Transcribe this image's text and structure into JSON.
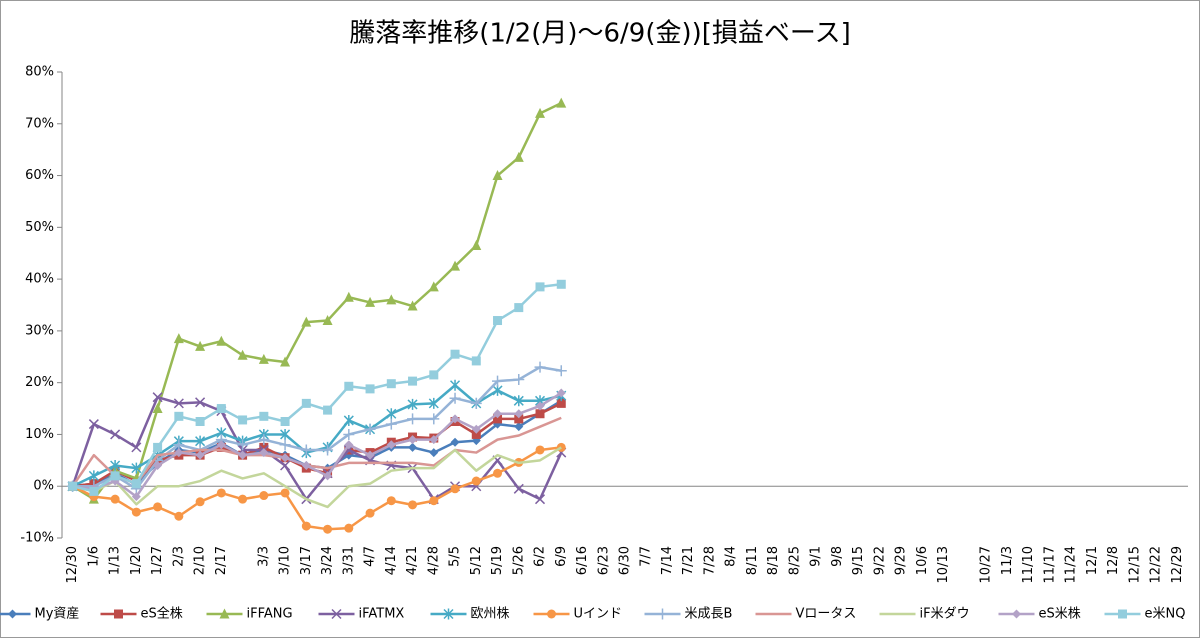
{
  "chart_data": {
    "type": "line",
    "title": "騰落率推移(1/2(月)～6/9(金))[損益ベース]",
    "categories": [
      "12/30",
      "1/6",
      "1/13",
      "1/20",
      "1/27",
      "2/3",
      "2/10",
      "2/17",
      null,
      "3/3",
      "3/10",
      "3/17",
      "3/24",
      "3/31",
      "4/7",
      "4/14",
      "4/21",
      "4/28",
      "5/5",
      "5/12",
      "5/19",
      "5/26",
      "6/2",
      "6/9",
      "6/16",
      "6/23",
      "6/30",
      "7/7",
      "7/14",
      "7/21",
      "7/28",
      "8/4",
      "8/11",
      "8/18",
      "8/25",
      "9/1",
      "9/8",
      "9/15",
      "9/22",
      "9/29",
      "10/6",
      "10/13",
      null,
      "10/27",
      "11/3",
      "11/10",
      "11/17",
      "11/24",
      "12/1",
      "12/8",
      "12/15",
      "12/22",
      "12/29"
    ],
    "ylim": [
      -10,
      80
    ],
    "yticks": [
      {
        "value": -10,
        "label": "-10%"
      },
      {
        "value": 0,
        "label": "0%"
      },
      {
        "value": 10,
        "label": "10%"
      },
      {
        "value": 20,
        "label": "20%"
      },
      {
        "value": 30,
        "label": "30%"
      },
      {
        "value": 40,
        "label": "40%"
      },
      {
        "value": 50,
        "label": "50%"
      },
      {
        "value": 60,
        "label": "60%"
      },
      {
        "value": 70,
        "label": "70%"
      },
      {
        "value": 80,
        "label": "80%"
      }
    ],
    "grid": false,
    "legend": "bottom",
    "series": [
      {
        "name": "My資産",
        "color": "#4a7ebb",
        "marker": "diamond",
        "values": [
          0,
          0.5,
          2.5,
          0.3,
          4.5,
          7,
          6.5,
          8.3,
          6,
          7,
          6,
          4,
          3.5,
          6,
          5.5,
          7.5,
          7.5,
          6.5,
          8.5,
          8.8,
          12,
          11.5,
          14,
          16.5,
          null,
          null,
          null,
          null,
          null,
          null,
          null,
          null,
          null,
          null,
          null,
          null,
          null,
          null,
          null,
          null,
          null,
          null,
          null,
          null,
          null,
          null,
          null,
          null,
          null,
          null,
          null,
          null,
          null
        ]
      },
      {
        "name": "eS全株",
        "color": "#be4b48",
        "marker": "square",
        "values": [
          0,
          0.5,
          3,
          1,
          5,
          6,
          6,
          7.5,
          6,
          7.5,
          5.5,
          3.5,
          2.5,
          7,
          6.5,
          8.5,
          9.5,
          9.3,
          12.5,
          10,
          13,
          13,
          14,
          16,
          null,
          null,
          null,
          null,
          null,
          null,
          null,
          null,
          null,
          null,
          null,
          null,
          null,
          null,
          null,
          null,
          null,
          null,
          null,
          null,
          null,
          null,
          null,
          null,
          null,
          null,
          null,
          null,
          null
        ]
      },
      {
        "name": "iFFANG",
        "color": "#98b954",
        "marker": "triangle",
        "values": [
          0,
          -2.5,
          3,
          1.5,
          15,
          28.5,
          27,
          28,
          25.3,
          24.5,
          24,
          31.7,
          32,
          36.5,
          35.5,
          36,
          34.8,
          38.5,
          42.5,
          46.5,
          60,
          63.5,
          72,
          74,
          null,
          null,
          null,
          null,
          null,
          null,
          null,
          null,
          null,
          null,
          null,
          null,
          null,
          null,
          null,
          null,
          null,
          null,
          null,
          null,
          null,
          null,
          null,
          null,
          null,
          null,
          null,
          null,
          null
        ]
      },
      {
        "name": "iFATMX",
        "color": "#7d60a0",
        "marker": "x",
        "values": [
          0,
          12,
          10,
          7.5,
          17.2,
          16,
          16.2,
          14.5,
          7,
          7,
          4,
          -2.5,
          2.5,
          7,
          5,
          4,
          3.5,
          -2.5,
          0,
          0,
          5,
          -0.5,
          -2.5,
          6.5,
          null,
          null,
          null,
          null,
          null,
          null,
          null,
          null,
          null,
          null,
          null,
          null,
          null,
          null,
          null,
          null,
          null,
          null,
          null,
          null,
          null,
          null,
          null,
          null,
          null,
          null,
          null,
          null,
          null
        ]
      },
      {
        "name": "欧州株",
        "color": "#46aac5",
        "marker": "star",
        "values": [
          0,
          2,
          4,
          3.5,
          6,
          8.7,
          8.7,
          10.3,
          8.7,
          10,
          10,
          6.5,
          7.5,
          12.7,
          11,
          14,
          15.8,
          16,
          19.5,
          16,
          18.5,
          16.5,
          16.5,
          17.5,
          null,
          null,
          null,
          null,
          null,
          null,
          null,
          null,
          null,
          null,
          null,
          null,
          null,
          null,
          null,
          null,
          null,
          null,
          null,
          null,
          null,
          null,
          null,
          null,
          null,
          null,
          null,
          null,
          null
        ]
      },
      {
        "name": "Uインド",
        "color": "#f79646",
        "marker": "circle",
        "values": [
          0,
          -2,
          -2.5,
          -5,
          -4,
          -5.8,
          -3,
          -1.3,
          -2.5,
          -1.8,
          -1.3,
          -7.7,
          -8.3,
          -8.1,
          -5.2,
          -2.8,
          -3.6,
          -2.8,
          -0.5,
          1,
          2.5,
          4.6,
          7,
          7.5,
          null,
          null,
          null,
          null,
          null,
          null,
          null,
          null,
          null,
          null,
          null,
          null,
          null,
          null,
          null,
          null,
          null,
          null,
          null,
          null,
          null,
          null,
          null,
          null,
          null,
          null,
          null,
          null,
          null
        ]
      },
      {
        "name": "米成長B",
        "color": "#95b3d7",
        "marker": "plus",
        "values": [
          0,
          0,
          2,
          -0.5,
          5,
          8,
          7,
          9,
          8,
          9,
          8,
          7,
          7,
          10,
          11,
          12,
          13,
          13,
          17,
          16,
          20.3,
          20.6,
          23,
          22.3,
          null,
          null,
          null,
          null,
          null,
          null,
          null,
          null,
          null,
          null,
          null,
          null,
          null,
          null,
          null,
          null,
          null,
          null,
          null,
          null,
          null,
          null,
          null,
          null,
          null,
          null,
          null,
          null,
          null
        ]
      },
      {
        "name": "Vロータス",
        "color": "#d99694",
        "marker": "none",
        "values": [
          0,
          6,
          2,
          0.5,
          6,
          6.5,
          7,
          7,
          6,
          6,
          5.5,
          4,
          3.5,
          4.5,
          4.5,
          4.5,
          4.5,
          4,
          7,
          6.5,
          9,
          9.8,
          11.5,
          13.2,
          null,
          null,
          null,
          null,
          null,
          null,
          null,
          null,
          null,
          null,
          null,
          null,
          null,
          null,
          null,
          null,
          null,
          null,
          null,
          null,
          null,
          null,
          null,
          null,
          null,
          null,
          null,
          null,
          null
        ]
      },
      {
        "name": "iF米ダウ",
        "color": "#c3d69b",
        "marker": "none",
        "values": [
          0,
          -1,
          1,
          -3.5,
          0,
          0,
          1,
          3,
          1.5,
          2.5,
          0,
          -2.5,
          -4,
          0,
          0.5,
          3,
          3.5,
          3.5,
          7,
          3,
          6,
          4.5,
          5,
          7.5,
          null,
          null,
          null,
          null,
          null,
          null,
          null,
          null,
          null,
          null,
          null,
          null,
          null,
          null,
          null,
          null,
          null,
          null,
          null,
          null,
          null,
          null,
          null,
          null,
          null,
          null,
          null,
          null,
          null
        ]
      },
      {
        "name": "eS米株",
        "color": "#b3a2c7",
        "marker": "diamond",
        "values": [
          0,
          -0.5,
          1,
          -2,
          4,
          6.5,
          6,
          8,
          6,
          6.5,
          5.5,
          4,
          2,
          8,
          6,
          8,
          9,
          9,
          13,
          11,
          14,
          14,
          15.5,
          18,
          null,
          null,
          null,
          null,
          null,
          null,
          null,
          null,
          null,
          null,
          null,
          null,
          null,
          null,
          null,
          null,
          null,
          null,
          null,
          null,
          null,
          null,
          null,
          null,
          null,
          null,
          null,
          null,
          null
        ]
      },
      {
        "name": "e米NQ",
        "color": "#93cddd",
        "marker": "square",
        "values": [
          0,
          -1,
          2,
          0.5,
          7.5,
          13.5,
          12.5,
          15,
          12.8,
          13.5,
          12.5,
          16,
          14.7,
          19.3,
          18.8,
          19.8,
          20.3,
          21.5,
          25.5,
          24.2,
          32,
          34.5,
          38.5,
          39,
          null,
          null,
          null,
          null,
          null,
          null,
          null,
          null,
          null,
          null,
          null,
          null,
          null,
          null,
          null,
          null,
          null,
          null,
          null,
          null,
          null,
          null,
          null,
          null,
          null,
          null,
          null,
          null,
          null
        ]
      }
    ]
  }
}
